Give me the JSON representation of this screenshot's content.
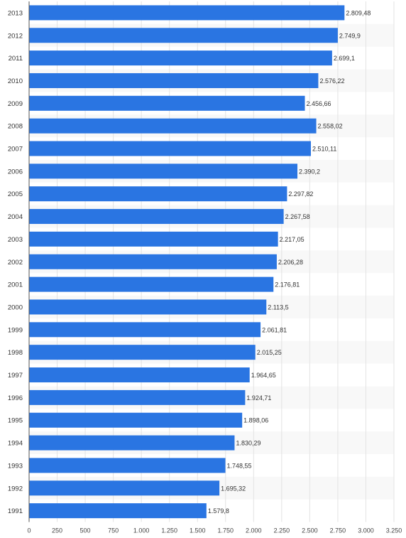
{
  "chart_data": {
    "type": "bar",
    "orientation": "horizontal",
    "title": "",
    "xlabel": "",
    "ylabel": "",
    "categories": [
      "2013",
      "2012",
      "2011",
      "2010",
      "2009",
      "2008",
      "2007",
      "2006",
      "2005",
      "2004",
      "2003",
      "2002",
      "2001",
      "2000",
      "1999",
      "1998",
      "1997",
      "1996",
      "1995",
      "1994",
      "1993",
      "1992",
      "1991"
    ],
    "values": [
      2809.48,
      2749.9,
      2699.1,
      2576.22,
      2456.66,
      2558.02,
      2510.11,
      2390.2,
      2297.82,
      2267.58,
      2217.05,
      2206.28,
      2176.81,
      2113.5,
      2061.81,
      2015.25,
      1964.65,
      1924.71,
      1898.06,
      1830.29,
      1748.55,
      1695.32,
      1579.8
    ],
    "value_labels": [
      "2.809,48",
      "2.749,9",
      "2.699,1",
      "2.576,22",
      "2.456,66",
      "2.558,02",
      "2.510,11",
      "2.390,2",
      "2.297,82",
      "2.267,58",
      "2.217,05",
      "2.206,28",
      "2.176,81",
      "2.113,5",
      "2.061,81",
      "2.015,25",
      "1.964,65",
      "1.924,71",
      "1.898,06",
      "1.830,29",
      "1.748,55",
      "1.695,32",
      "1.579,8"
    ],
    "xlim": [
      0,
      3250
    ],
    "xticks": [
      0,
      250,
      500,
      750,
      1000,
      1250,
      1500,
      1750,
      2000,
      2250,
      2500,
      2750,
      3000,
      3250
    ],
    "xtick_labels": [
      "0",
      "250",
      "500",
      "750",
      "1.000",
      "1.250",
      "1.500",
      "1.750",
      "2.000",
      "2.250",
      "2.500",
      "2.750",
      "3.000",
      "3.250"
    ],
    "grid": true,
    "legend": "none",
    "colors": {
      "bar": "#2a75e2",
      "band": "#f8f8f8",
      "grid": "#e3e3e3",
      "axis": "#555555"
    }
  }
}
